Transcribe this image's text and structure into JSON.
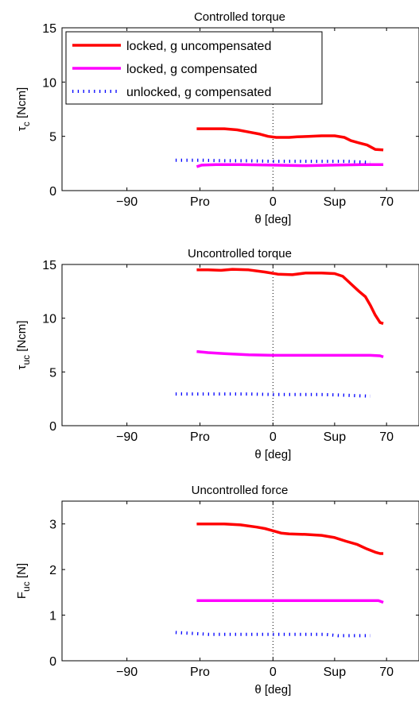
{
  "chart_data": [
    {
      "type": "line",
      "title": "Controlled torque",
      "ylabel": {
        "base": "τ",
        "sub": "c",
        "rest": " [Ncm]"
      },
      "xlabel": "θ [deg]",
      "xlim": [
        -130,
        90
      ],
      "ylim": [
        0,
        15
      ],
      "xticks": [
        {
          "value": -90,
          "label": "−90"
        },
        {
          "value": -45,
          "label": "Pro"
        },
        {
          "value": 0,
          "label": "0"
        },
        {
          "value": 38,
          "label": "Sup"
        },
        {
          "value": 70,
          "label": "70"
        }
      ],
      "yticks": [
        {
          "value": 0,
          "label": "0"
        },
        {
          "value": 5,
          "label": "5"
        },
        {
          "value": 10,
          "label": "10"
        },
        {
          "value": 15,
          "label": "15"
        }
      ],
      "zero_line": true,
      "legend": {
        "position": "top-left"
      },
      "series": [
        {
          "name": "locked, g uncompensated",
          "color": "#ff0000",
          "style": "solid",
          "x": [
            -47,
            -40,
            -30,
            -22,
            -15,
            -8,
            -3,
            2,
            10,
            15,
            22,
            30,
            38,
            44,
            48,
            53,
            58,
            63,
            68
          ],
          "y": [
            5.7,
            5.7,
            5.7,
            5.6,
            5.4,
            5.2,
            5.0,
            4.9,
            4.9,
            4.95,
            5.0,
            5.05,
            5.05,
            4.9,
            4.6,
            4.4,
            4.2,
            3.8,
            3.75
          ]
        },
        {
          "name": "locked, g compensated",
          "color": "#ff00ff",
          "style": "solid",
          "x": [
            -47,
            -44,
            -35,
            -20,
            0,
            20,
            38,
            55,
            68
          ],
          "y": [
            2.2,
            2.35,
            2.4,
            2.4,
            2.35,
            2.3,
            2.35,
            2.4,
            2.4
          ]
        },
        {
          "name": "unlocked, g compensated",
          "color": "#0000ff",
          "style": "dotted",
          "x": [
            -60,
            -45,
            -30,
            -15,
            0,
            15,
            30,
            45,
            60
          ],
          "y": [
            2.8,
            2.8,
            2.75,
            2.75,
            2.7,
            2.7,
            2.7,
            2.7,
            2.6
          ]
        }
      ]
    },
    {
      "type": "line",
      "title": "Uncontrolled torque",
      "ylabel": {
        "base": "τ",
        "sub": "uc",
        "rest": " [Ncm]"
      },
      "xlabel": "θ [deg]",
      "xlim": [
        -130,
        90
      ],
      "ylim": [
        0,
        15
      ],
      "xticks": [
        {
          "value": -90,
          "label": "−90"
        },
        {
          "value": -45,
          "label": "Pro"
        },
        {
          "value": 0,
          "label": "0"
        },
        {
          "value": 38,
          "label": "Sup"
        },
        {
          "value": 70,
          "label": "70"
        }
      ],
      "yticks": [
        {
          "value": 0,
          "label": "0"
        },
        {
          "value": 5,
          "label": "5"
        },
        {
          "value": 10,
          "label": "10"
        },
        {
          "value": 15,
          "label": "15"
        }
      ],
      "zero_line": true,
      "series": [
        {
          "color": "#ff0000",
          "style": "solid",
          "x": [
            -47,
            -40,
            -32,
            -25,
            -15,
            -5,
            3,
            12,
            20,
            30,
            38,
            43,
            48,
            53,
            57,
            60,
            63,
            66,
            68
          ],
          "y": [
            14.5,
            14.5,
            14.45,
            14.55,
            14.5,
            14.3,
            14.1,
            14.05,
            14.2,
            14.2,
            14.15,
            13.9,
            13.2,
            12.5,
            12.0,
            11.2,
            10.3,
            9.6,
            9.5
          ]
        },
        {
          "color": "#ff00ff",
          "style": "solid",
          "x": [
            -47,
            -40,
            -30,
            -15,
            0,
            20,
            40,
            60,
            66,
            68
          ],
          "y": [
            6.9,
            6.8,
            6.7,
            6.6,
            6.55,
            6.55,
            6.55,
            6.55,
            6.5,
            6.4
          ]
        },
        {
          "color": "#0000ff",
          "style": "dotted",
          "x": [
            -60,
            -45,
            -30,
            -15,
            0,
            15,
            30,
            42,
            50,
            60
          ],
          "y": [
            2.95,
            2.95,
            2.95,
            2.95,
            2.9,
            2.9,
            2.9,
            2.85,
            2.8,
            2.75
          ]
        }
      ]
    },
    {
      "type": "line",
      "title": "Uncontrolled force",
      "ylabel": {
        "base": "F",
        "sub": "uc",
        "rest": " [N]"
      },
      "xlabel": "θ [deg]",
      "xlim": [
        -130,
        90
      ],
      "ylim": [
        0,
        3.5
      ],
      "xticks": [
        {
          "value": -90,
          "label": "−90"
        },
        {
          "value": -45,
          "label": "Pro"
        },
        {
          "value": 0,
          "label": "0"
        },
        {
          "value": 38,
          "label": "Sup"
        },
        {
          "value": 70,
          "label": "70"
        }
      ],
      "yticks": [
        {
          "value": 0,
          "label": "0"
        },
        {
          "value": 1,
          "label": "1"
        },
        {
          "value": 2,
          "label": "2"
        },
        {
          "value": 3,
          "label": "3"
        }
      ],
      "zero_line": true,
      "series": [
        {
          "color": "#ff0000",
          "style": "solid",
          "x": [
            -47,
            -40,
            -30,
            -20,
            -10,
            -5,
            0,
            5,
            10,
            20,
            30,
            38,
            45,
            52,
            58,
            63,
            66,
            68
          ],
          "y": [
            3.0,
            3.0,
            3.0,
            2.98,
            2.93,
            2.9,
            2.85,
            2.8,
            2.78,
            2.77,
            2.75,
            2.7,
            2.62,
            2.55,
            2.45,
            2.38,
            2.35,
            2.35
          ]
        },
        {
          "color": "#ff00ff",
          "style": "solid",
          "x": [
            -47,
            -30,
            -10,
            10,
            30,
            50,
            65,
            68
          ],
          "y": [
            1.32,
            1.32,
            1.32,
            1.32,
            1.32,
            1.32,
            1.32,
            1.28
          ]
        },
        {
          "color": "#0000ff",
          "style": "dotted",
          "x": [
            -60,
            -50,
            -40,
            -20,
            0,
            20,
            32,
            40,
            50,
            60
          ],
          "y": [
            0.62,
            0.6,
            0.58,
            0.58,
            0.58,
            0.58,
            0.58,
            0.55,
            0.55,
            0.55
          ]
        }
      ]
    }
  ]
}
